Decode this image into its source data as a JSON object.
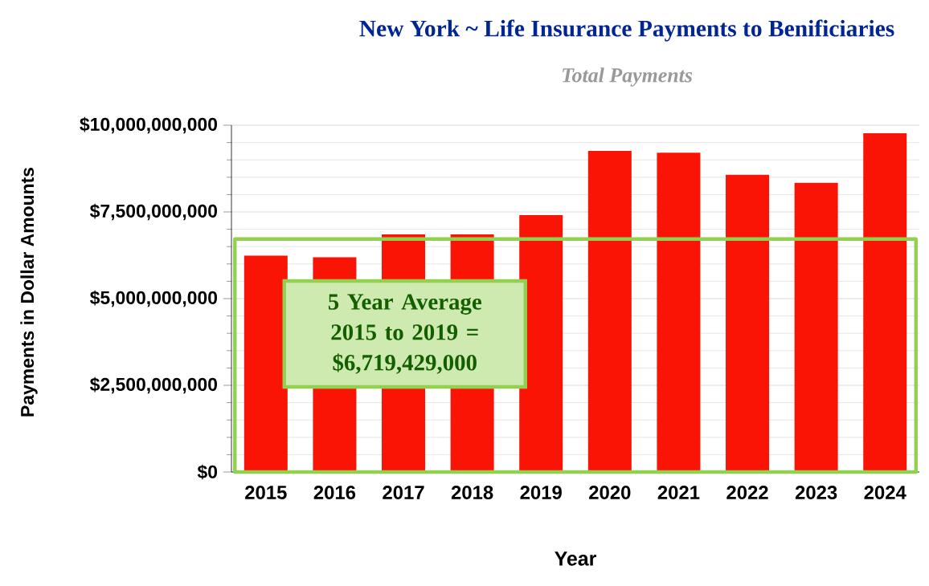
{
  "chart_data": {
    "type": "bar",
    "title": "New York ~ Life Insurance Payments to Benificiaries",
    "subtitle": "Total Payments",
    "xlabel": "Year",
    "ylabel": "Payments in Dollar Amounts",
    "categories": [
      "2015",
      "2016",
      "2017",
      "2018",
      "2019",
      "2020",
      "2021",
      "2022",
      "2023",
      "2024"
    ],
    "values": [
      6240000000,
      6190000000,
      6850000000,
      6850000000,
      7410000000,
      9260000000,
      9210000000,
      8570000000,
      8340000000,
      9770000000
    ],
    "color": "#fa1405",
    "ylim": [
      0,
      10000000000
    ],
    "yticks": [
      {
        "value": 0,
        "label": "$0"
      },
      {
        "value": 2500000000,
        "label": "$2,500,000,000"
      },
      {
        "value": 5000000000,
        "label": "$5,000,000,000"
      },
      {
        "value": 7500000000,
        "label": "$7,500,000,000"
      },
      {
        "value": 10000000000,
        "label": "$10,000,000,000"
      }
    ],
    "grid": "y",
    "ref_lines": [
      {
        "axis": "y",
        "value": 6719429000,
        "label": "5 Year Average 2015 to 2019 = $6,719,429,000",
        "color": "#92d050"
      }
    ]
  }
}
